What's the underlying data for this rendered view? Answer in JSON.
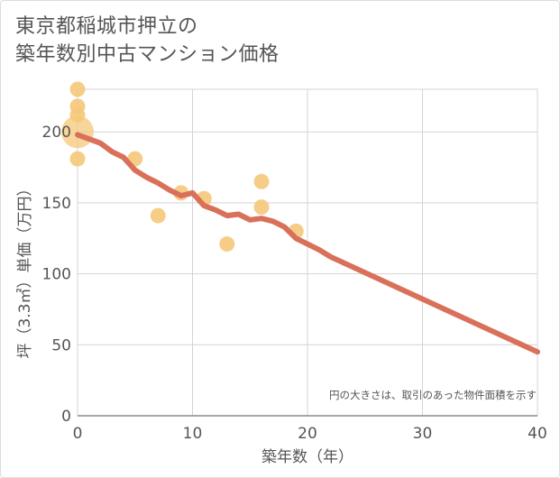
{
  "chart_data": {
    "type": "scatter",
    "title_lines": [
      "東京都稲城市押立の",
      "築年数別中古マンション価格"
    ],
    "xlabel": "築年数（年）",
    "ylabel": "坪（3.3㎡）単価（万円）",
    "xlim": [
      0,
      40
    ],
    "ylim": [
      0,
      230
    ],
    "xticks": [
      0,
      10,
      20,
      30,
      40
    ],
    "yticks": [
      0,
      50,
      100,
      150,
      200
    ],
    "grid": true,
    "note": "円の大きさは、取引のあった物件面積を示す",
    "scatter_color": "#f5c87a",
    "line_color": "#d9705a",
    "points": [
      {
        "x": 0,
        "y": 230,
        "size": 1
      },
      {
        "x": 0,
        "y": 218,
        "size": 1
      },
      {
        "x": 0,
        "y": 212,
        "size": 1
      },
      {
        "x": 0,
        "y": 200,
        "size": 3
      },
      {
        "x": 0,
        "y": 181,
        "size": 1
      },
      {
        "x": 5,
        "y": 181,
        "size": 1
      },
      {
        "x": 7,
        "y": 141,
        "size": 1
      },
      {
        "x": 9,
        "y": 157,
        "size": 1
      },
      {
        "x": 11,
        "y": 153,
        "size": 1
      },
      {
        "x": 13,
        "y": 121,
        "size": 1
      },
      {
        "x": 16,
        "y": 165,
        "size": 1
      },
      {
        "x": 16,
        "y": 147,
        "size": 1
      },
      {
        "x": 19,
        "y": 130,
        "size": 1
      }
    ],
    "trend": {
      "x": [
        0,
        1,
        2,
        3,
        4,
        5,
        6,
        7,
        8,
        9,
        10,
        11,
        12,
        13,
        14,
        15,
        16,
        17,
        18,
        19,
        20,
        21,
        22,
        40
      ],
      "y": [
        198,
        195,
        192,
        186,
        182,
        173,
        168,
        164,
        159,
        155,
        157,
        148,
        145,
        141,
        142,
        138,
        139,
        137,
        133,
        125,
        121,
        117,
        112,
        45
      ]
    }
  }
}
